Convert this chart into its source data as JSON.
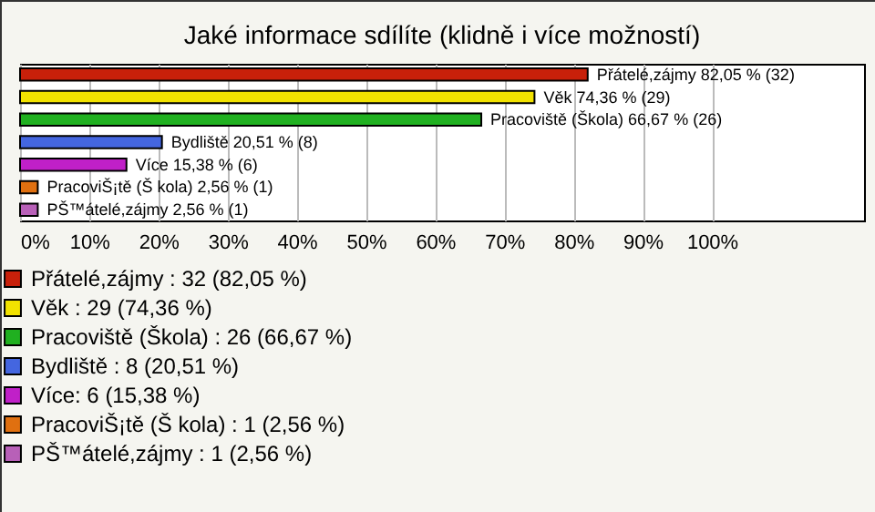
{
  "chart_data": {
    "type": "bar",
    "orientation": "horizontal",
    "title": "Jaké informace sdílíte (klidně i více možností)",
    "categories": [
      null,
      null,
      null,
      null,
      null,
      null,
      null
    ],
    "series": [
      {
        "name": "Přátelé,zájmy : 32 (82,05 %)",
        "color": "#c8200a",
        "values": [
          82.05,
          null,
          null,
          null,
          null,
          null,
          null
        ],
        "value_labels": [
          "Přátelé,zájmy  82,05 % (32)",
          null,
          null,
          null,
          null,
          null,
          null
        ]
      },
      {
        "name": "Věk : 29 (74,36 %)",
        "color": "#f2e200",
        "values": [
          null,
          74.36,
          null,
          null,
          null,
          null,
          null
        ],
        "value_labels": [
          null,
          "Věk  74,36 % (29)",
          null,
          null,
          null,
          null,
          null
        ]
      },
      {
        "name": "Pracoviště (Škola) : 26 (66,67 %)",
        "color": "#20b020",
        "values": [
          null,
          null,
          66.67,
          null,
          null,
          null,
          null
        ],
        "value_labels": [
          null,
          null,
          "Pracoviště (Škola)  66,67 % (26)",
          null,
          null,
          null,
          null
        ]
      },
      {
        "name": "Bydliště : 8 (20,51 %)",
        "color": "#4466e0",
        "values": [
          null,
          null,
          null,
          20.51,
          null,
          null,
          null
        ],
        "value_labels": [
          null,
          null,
          null,
          "Bydliště  20,51 % (8)",
          null,
          null,
          null
        ]
      },
      {
        "name": "Více: 6 (15,38 %)",
        "color": "#c020c8",
        "values": [
          null,
          null,
          null,
          null,
          15.38,
          null,
          null
        ],
        "value_labels": [
          null,
          null,
          null,
          null,
          "Více 15,38 % (6)",
          null,
          null
        ]
      },
      {
        "name": "PracoviŠ¡tě (Š kola) : 1 (2,56 %)",
        "color": "#e07010",
        "values": [
          null,
          null,
          null,
          null,
          null,
          2.56,
          null
        ],
        "value_labels": [
          null,
          null,
          null,
          null,
          null,
          "PracoviŠ¡tě (Š kola)  2,56 % (1)",
          null
        ]
      },
      {
        "name": "PŠ™átelé,zájmy : 1 (2,56 %)",
        "color": "#b860b8",
        "values": [
          null,
          null,
          null,
          null,
          null,
          null,
          2.56
        ],
        "value_labels": [
          null,
          null,
          null,
          null,
          null,
          null,
          "PŠ™átelé,zájmy  2,56 % (1)"
        ]
      }
    ],
    "xlim": [
      0,
      122
    ],
    "xticks": [
      {
        "value": 0,
        "label": "0%"
      },
      {
        "value": 10,
        "label": "10%"
      },
      {
        "value": 20,
        "label": "20%"
      },
      {
        "value": 30,
        "label": "30%"
      },
      {
        "value": 40,
        "label": "40%"
      },
      {
        "value": 50,
        "label": "50%"
      },
      {
        "value": 60,
        "label": "60%"
      },
      {
        "value": 70,
        "label": "70%"
      },
      {
        "value": 80,
        "label": "80%"
      },
      {
        "value": 90,
        "label": "90%"
      },
      {
        "value": 100,
        "label": "100%"
      }
    ],
    "grid": "x",
    "legend": "bottom left",
    "tick_labels": "x"
  }
}
